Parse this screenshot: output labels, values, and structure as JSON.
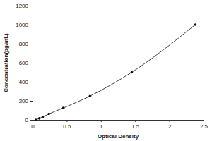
{
  "chart_data": {
    "type": "line",
    "x_label": "Optical Density",
    "y_label": "Concentration(pg/mL)",
    "x": [
      0.05,
      0.1,
      0.15,
      0.24,
      0.45,
      0.84,
      1.45,
      2.38
    ],
    "values": [
      0,
      15.6,
      31.25,
      62.5,
      125,
      250,
      500,
      1000
    ],
    "color": "#404040",
    "marker": "circle",
    "line_style": "solid",
    "xlim": [
      0,
      2.5
    ],
    "xticks": [
      0,
      0.5,
      1,
      1.5,
      2,
      2.5
    ],
    "ylim": [
      0,
      1200
    ],
    "yticks": [
      0,
      200,
      400,
      600,
      800,
      1000,
      1200
    ],
    "grid": false
  }
}
